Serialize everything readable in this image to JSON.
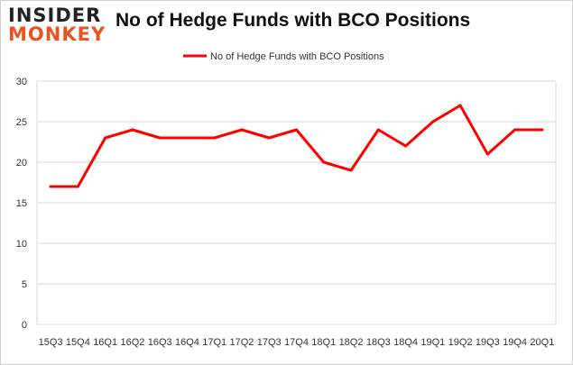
{
  "logo": {
    "line1": "INSIDER",
    "line2": "MONKEY"
  },
  "chart_data": {
    "type": "line",
    "title": "No of Hedge Funds with BCO Positions",
    "xlabel": "",
    "ylabel": "",
    "categories": [
      "15Q3",
      "15Q4",
      "16Q1",
      "16Q2",
      "16Q3",
      "16Q4",
      "17Q1",
      "17Q2",
      "17Q3",
      "17Q4",
      "18Q1",
      "18Q2",
      "18Q3",
      "18Q4",
      "19Q1",
      "19Q2",
      "19Q3",
      "19Q4",
      "20Q1"
    ],
    "series": [
      {
        "name": "No of Hedge Funds with BCO Positions",
        "color": "#ff0000",
        "values": [
          17,
          17,
          23,
          24,
          23,
          23,
          23,
          24,
          23,
          24,
          20,
          19,
          24,
          22,
          25,
          27,
          21,
          24,
          24
        ]
      }
    ],
    "ylim": [
      0,
      30
    ],
    "yticks": [
      0,
      5,
      10,
      15,
      20,
      25,
      30
    ],
    "grid": true,
    "legend_position": "top-center"
  },
  "colors": {
    "line": "#ff0000",
    "grid": "#d9d9d9",
    "logo_accent": "#e8531f"
  }
}
